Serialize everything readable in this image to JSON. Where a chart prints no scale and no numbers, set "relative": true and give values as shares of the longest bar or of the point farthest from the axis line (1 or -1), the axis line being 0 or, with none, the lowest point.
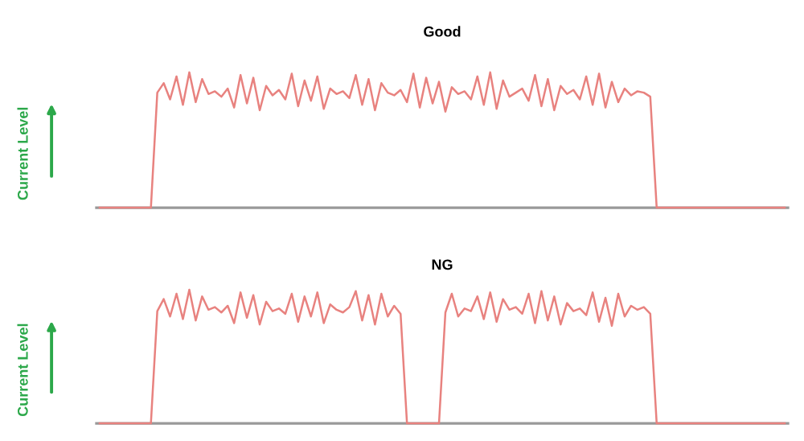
{
  "chart_data": [
    {
      "type": "line",
      "title": "Good",
      "ylabel": "Current Level",
      "relative": true,
      "categories": [
        null,
        null,
        null,
        null,
        null,
        null,
        null,
        null,
        null,
        null,
        null,
        null,
        null,
        null,
        null,
        null,
        null,
        null,
        null,
        null,
        null,
        null,
        null,
        null,
        null,
        null,
        null,
        null,
        null,
        null,
        null,
        null,
        null,
        null,
        null,
        null,
        null,
        null,
        null,
        null,
        null,
        null,
        null,
        null,
        null,
        null,
        null,
        null,
        null,
        null,
        null,
        null,
        null,
        null,
        null,
        null,
        null,
        null,
        null,
        null,
        null,
        null,
        null,
        null,
        null,
        null,
        null,
        null,
        null,
        null,
        null,
        null,
        null,
        null,
        null,
        null,
        null,
        null,
        null,
        null,
        null,
        null,
        null,
        null,
        null,
        null,
        null,
        null,
        null,
        null,
        null,
        null,
        null,
        null,
        null,
        null,
        null,
        null,
        null,
        null,
        null,
        null,
        null,
        null,
        null,
        null,
        null,
        null
      ],
      "series": [
        {
          "color": "#e8827f",
          "values": [
            0,
            0,
            0,
            0,
            0,
            0,
            0,
            0,
            0,
            0.85,
            0.92,
            0.8,
            0.97,
            0.76,
            1.0,
            0.78,
            0.95,
            0.84,
            0.86,
            0.82,
            0.88,
            0.74,
            0.98,
            0.77,
            0.96,
            0.72,
            0.9,
            0.83,
            0.87,
            0.8,
            0.99,
            0.75,
            0.94,
            0.79,
            0.97,
            0.73,
            0.88,
            0.84,
            0.86,
            0.81,
            0.98,
            0.76,
            0.95,
            0.72,
            0.92,
            0.85,
            0.83,
            0.87,
            0.78,
            0.99,
            0.74,
            0.96,
            0.77,
            0.93,
            0.71,
            0.89,
            0.84,
            0.86,
            0.8,
            0.97,
            0.76,
            1.0,
            0.73,
            0.94,
            0.82,
            0.85,
            0.88,
            0.79,
            0.98,
            0.75,
            0.95,
            0.72,
            0.9,
            0.84,
            0.87,
            0.8,
            0.97,
            0.76,
            0.99,
            0.74,
            0.93,
            0.78,
            0.88,
            0.83,
            0.86,
            0.85,
            0.82,
            0,
            0,
            0,
            0,
            0,
            0,
            0,
            0,
            0,
            0,
            0,
            0,
            0,
            0,
            0,
            0,
            0,
            0,
            0,
            0,
            0
          ]
        }
      ]
    },
    {
      "type": "line",
      "title": "NG",
      "ylabel": "Current Level",
      "relative": true,
      "categories": [
        null,
        null,
        null,
        null,
        null,
        null,
        null,
        null,
        null,
        null,
        null,
        null,
        null,
        null,
        null,
        null,
        null,
        null,
        null,
        null,
        null,
        null,
        null,
        null,
        null,
        null,
        null,
        null,
        null,
        null,
        null,
        null,
        null,
        null,
        null,
        null,
        null,
        null,
        null,
        null,
        null,
        null,
        null,
        null,
        null,
        null,
        null,
        null,
        null,
        null,
        null,
        null,
        null,
        null,
        null,
        null,
        null,
        null,
        null,
        null,
        null,
        null,
        null,
        null,
        null,
        null,
        null,
        null,
        null,
        null,
        null,
        null,
        null,
        null,
        null,
        null,
        null,
        null,
        null,
        null,
        null,
        null,
        null,
        null,
        null,
        null,
        null,
        null,
        null,
        null,
        null,
        null,
        null,
        null,
        null,
        null,
        null,
        null,
        null,
        null,
        null,
        null,
        null,
        null,
        null,
        null,
        null,
        null
      ],
      "series": [
        {
          "color": "#e8827f",
          "values": [
            0,
            0,
            0,
            0,
            0,
            0,
            0,
            0,
            0,
            0.84,
            0.93,
            0.8,
            0.97,
            0.78,
            1.0,
            0.77,
            0.95,
            0.85,
            0.87,
            0.83,
            0.88,
            0.75,
            0.98,
            0.79,
            0.96,
            0.74,
            0.91,
            0.84,
            0.86,
            0.82,
            0.97,
            0.76,
            0.95,
            0.8,
            0.98,
            0.75,
            0.89,
            0.85,
            0.83,
            0.87,
            0.99,
            0.77,
            0.96,
            0.74,
            0.97,
            0.8,
            0.88,
            0.82,
            0,
            0,
            0,
            0,
            0,
            0,
            0.83,
            0.97,
            0.8,
            0.86,
            0.84,
            0.95,
            0.78,
            0.98,
            0.76,
            0.93,
            0.85,
            0.87,
            0.82,
            0.97,
            0.75,
            0.99,
            0.77,
            0.95,
            0.74,
            0.9,
            0.84,
            0.86,
            0.81,
            0.98,
            0.76,
            0.94,
            0.73,
            0.97,
            0.8,
            0.88,
            0.85,
            0.87,
            0.82,
            0,
            0,
            0,
            0,
            0,
            0,
            0,
            0,
            0,
            0,
            0,
            0,
            0,
            0,
            0,
            0,
            0,
            0,
            0,
            0,
            0
          ]
        }
      ]
    }
  ]
}
